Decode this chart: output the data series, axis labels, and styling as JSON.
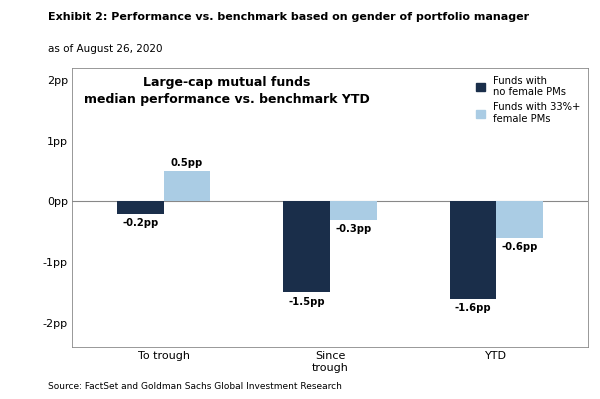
{
  "title": "Exhibit 2: Performance vs. benchmark based on gender of portfolio manager",
  "subtitle": "as of August 26, 2020",
  "chart_title_line1": "Large-cap mutual funds",
  "chart_title_line2": "median performance vs. benchmark YTD",
  "categories": [
    "To trough",
    "Since\ntrough",
    "YTD"
  ],
  "series1_label": "Funds with\nno female PMs",
  "series2_label": "Funds with 33%+\nfemale PMs",
  "series1_values": [
    -0.2,
    -1.5,
    -1.6
  ],
  "series2_values": [
    0.5,
    -0.3,
    -0.6
  ],
  "series1_color": "#1a2e4a",
  "series2_color": "#aacce4",
  "bar_labels1": [
    "-0.2pp",
    "-1.5pp",
    "-1.6pp"
  ],
  "bar_labels2": [
    "0.5pp",
    "-0.3pp",
    "-0.6pp"
  ],
  "ylim": [
    -2.4,
    2.2
  ],
  "yticks": [
    -2,
    -1,
    0,
    1,
    2
  ],
  "ytick_labels": [
    "-2pp",
    "-1pp",
    "0pp",
    "1pp",
    "2pp"
  ],
  "source": "Source: FactSet and Goldman Sachs Global Investment Research",
  "background_color": "#ffffff",
  "bar_width": 0.28
}
